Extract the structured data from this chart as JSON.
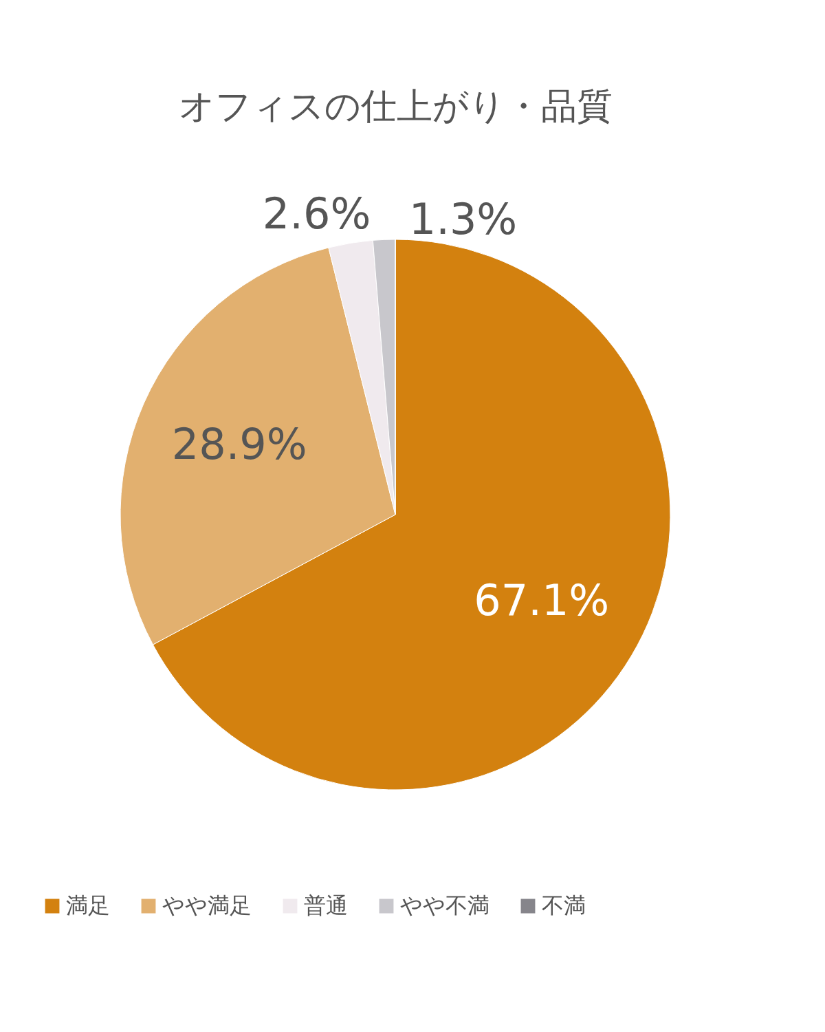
{
  "chart_data": {
    "type": "pie",
    "title": "オフィスの仕上がり・品質",
    "categories": [
      "満足",
      "やや満足",
      "普通",
      "やや不満",
      "不満"
    ],
    "values": [
      67.1,
      28.9,
      2.6,
      1.3,
      0
    ],
    "value_labels": [
      "67.1%",
      "28.9%",
      "2.6%",
      "1.3%",
      null
    ],
    "colors": [
      "#d3810f",
      "#e2b06f",
      "#f0eaee",
      "#c8c7cc",
      "#86858b"
    ],
    "legend": "bottom"
  }
}
